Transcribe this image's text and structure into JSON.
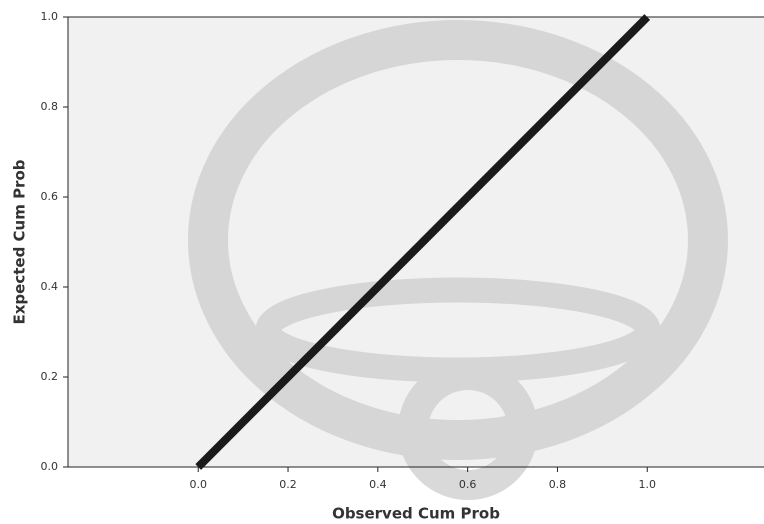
{
  "chart_data": {
    "type": "line",
    "x_label": "Observed Cum Prob",
    "y_label": "Expected Cum Prob",
    "x": [
      0,
      1
    ],
    "series": [
      {
        "color": "#1a1a1a",
        "values": [
          0,
          1
        ]
      }
    ],
    "xlim": [
      -0.29,
      1.26
    ],
    "ylim": [
      0,
      1
    ],
    "xticks": [
      {
        "value": 0,
        "label": "0.0"
      },
      {
        "value": 0.2,
        "label": "0.2"
      },
      {
        "value": 0.4,
        "label": "0.4"
      },
      {
        "value": 0.6,
        "label": "0.6"
      },
      {
        "value": 0.8,
        "label": "0.8"
      },
      {
        "value": 1,
        "label": "1.0"
      }
    ],
    "yticks": [
      {
        "value": 0,
        "label": "0.0"
      },
      {
        "value": 0.2,
        "label": "0.2"
      },
      {
        "value": 0.4,
        "label": "0.4"
      },
      {
        "value": 0.6,
        "label": "0.6"
      },
      {
        "value": 0.8,
        "label": "0.8"
      },
      {
        "value": 1,
        "label": "1.0"
      }
    ]
  }
}
